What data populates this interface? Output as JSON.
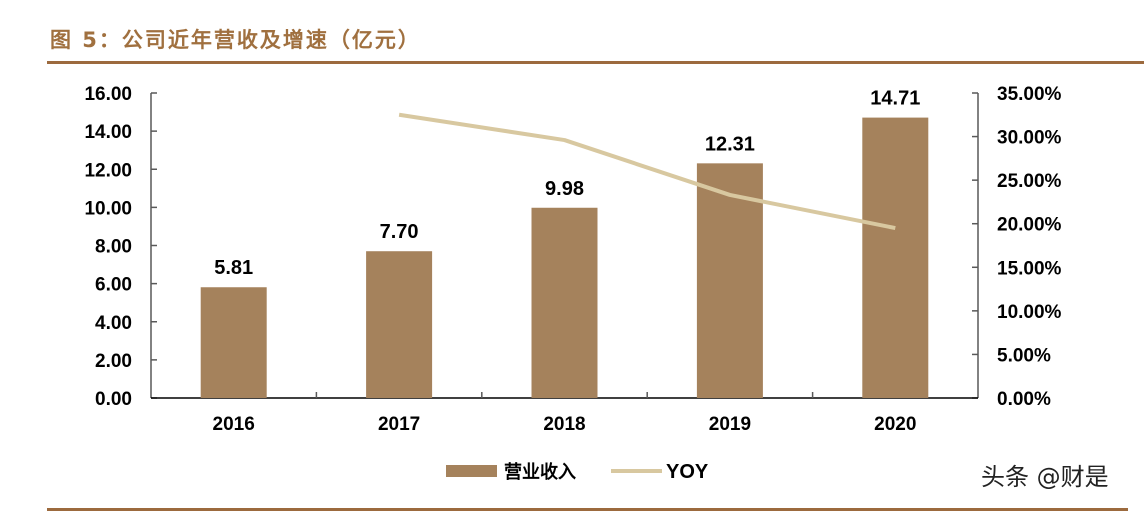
{
  "header": {
    "title": "图 5：公司近年营收及增速（亿元）"
  },
  "watermark": "头条 @财是",
  "colors": {
    "bar": "#a5825c",
    "line": "#d8c8a0",
    "title": "#a0703f",
    "rule": "#9c6a3e",
    "axis": "#595959"
  },
  "chart_data": {
    "type": "bar",
    "title": "图 5：公司近年营收及增速（亿元）",
    "categories": [
      "2016",
      "2017",
      "2018",
      "2019",
      "2020"
    ],
    "series": [
      {
        "name": "营业收入",
        "type": "bar",
        "axis": "left",
        "values": [
          5.81,
          7.7,
          9.98,
          12.31,
          14.71
        ],
        "labels": [
          "5.81",
          "7.70",
          "9.98",
          "12.31",
          "14.71"
        ]
      },
      {
        "name": "YOY",
        "type": "line",
        "axis": "right",
        "values": [
          null,
          32.5,
          29.6,
          23.3,
          19.5
        ],
        "unit": "%"
      }
    ],
    "xlabel": "",
    "ylabel": "",
    "ylim": [
      0,
      16
    ],
    "y_ticks": [
      "0.00",
      "2.00",
      "4.00",
      "6.00",
      "8.00",
      "10.00",
      "12.00",
      "14.00",
      "16.00"
    ],
    "y2lim": [
      0,
      35
    ],
    "y2_ticks": [
      "0.00%",
      "5.00%",
      "10.00%",
      "15.00%",
      "20.00%",
      "25.00%",
      "30.00%",
      "35.00%"
    ],
    "grid": false,
    "legend": {
      "position": "bottom",
      "entries": [
        "营业收入",
        "YOY"
      ]
    }
  }
}
